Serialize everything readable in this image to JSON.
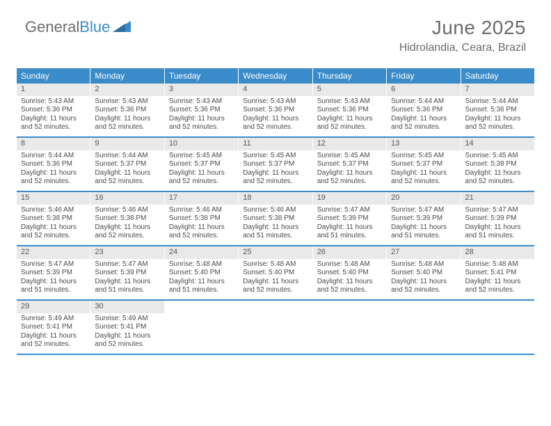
{
  "logo": {
    "general": "General",
    "blue": "Blue"
  },
  "title": "June 2025",
  "subtitle": "Hidrolandia, Ceara, Brazil",
  "colors": {
    "header_bar": "#3a8bc9",
    "daynum_bg": "#e9e9e9",
    "text": "#4a4a4a",
    "title_color": "#6b6b6b"
  },
  "day_headers": [
    "Sunday",
    "Monday",
    "Tuesday",
    "Wednesday",
    "Thursday",
    "Friday",
    "Saturday"
  ],
  "weeks": [
    [
      {
        "n": "1",
        "sr": "5:43 AM",
        "ss": "5:36 PM",
        "dl": "11 hours and 52 minutes."
      },
      {
        "n": "2",
        "sr": "5:43 AM",
        "ss": "5:36 PM",
        "dl": "11 hours and 52 minutes."
      },
      {
        "n": "3",
        "sr": "5:43 AM",
        "ss": "5:36 PM",
        "dl": "11 hours and 52 minutes."
      },
      {
        "n": "4",
        "sr": "5:43 AM",
        "ss": "5:36 PM",
        "dl": "11 hours and 52 minutes."
      },
      {
        "n": "5",
        "sr": "5:43 AM",
        "ss": "5:36 PM",
        "dl": "11 hours and 52 minutes."
      },
      {
        "n": "6",
        "sr": "5:44 AM",
        "ss": "5:36 PM",
        "dl": "11 hours and 52 minutes."
      },
      {
        "n": "7",
        "sr": "5:44 AM",
        "ss": "5:36 PM",
        "dl": "11 hours and 52 minutes."
      }
    ],
    [
      {
        "n": "8",
        "sr": "5:44 AM",
        "ss": "5:36 PM",
        "dl": "11 hours and 52 minutes."
      },
      {
        "n": "9",
        "sr": "5:44 AM",
        "ss": "5:37 PM",
        "dl": "11 hours and 52 minutes."
      },
      {
        "n": "10",
        "sr": "5:45 AM",
        "ss": "5:37 PM",
        "dl": "11 hours and 52 minutes."
      },
      {
        "n": "11",
        "sr": "5:45 AM",
        "ss": "5:37 PM",
        "dl": "11 hours and 52 minutes."
      },
      {
        "n": "12",
        "sr": "5:45 AM",
        "ss": "5:37 PM",
        "dl": "11 hours and 52 minutes."
      },
      {
        "n": "13",
        "sr": "5:45 AM",
        "ss": "5:37 PM",
        "dl": "11 hours and 52 minutes."
      },
      {
        "n": "14",
        "sr": "5:45 AM",
        "ss": "5:38 PM",
        "dl": "11 hours and 52 minutes."
      }
    ],
    [
      {
        "n": "15",
        "sr": "5:46 AM",
        "ss": "5:38 PM",
        "dl": "11 hours and 52 minutes."
      },
      {
        "n": "16",
        "sr": "5:46 AM",
        "ss": "5:38 PM",
        "dl": "11 hours and 52 minutes."
      },
      {
        "n": "17",
        "sr": "5:46 AM",
        "ss": "5:38 PM",
        "dl": "11 hours and 52 minutes."
      },
      {
        "n": "18",
        "sr": "5:46 AM",
        "ss": "5:38 PM",
        "dl": "11 hours and 51 minutes."
      },
      {
        "n": "19",
        "sr": "5:47 AM",
        "ss": "5:39 PM",
        "dl": "11 hours and 51 minutes."
      },
      {
        "n": "20",
        "sr": "5:47 AM",
        "ss": "5:39 PM",
        "dl": "11 hours and 51 minutes."
      },
      {
        "n": "21",
        "sr": "5:47 AM",
        "ss": "5:39 PM",
        "dl": "11 hours and 51 minutes."
      }
    ],
    [
      {
        "n": "22",
        "sr": "5:47 AM",
        "ss": "5:39 PM",
        "dl": "11 hours and 51 minutes."
      },
      {
        "n": "23",
        "sr": "5:47 AM",
        "ss": "5:39 PM",
        "dl": "11 hours and 51 minutes."
      },
      {
        "n": "24",
        "sr": "5:48 AM",
        "ss": "5:40 PM",
        "dl": "11 hours and 51 minutes."
      },
      {
        "n": "25",
        "sr": "5:48 AM",
        "ss": "5:40 PM",
        "dl": "11 hours and 52 minutes."
      },
      {
        "n": "26",
        "sr": "5:48 AM",
        "ss": "5:40 PM",
        "dl": "11 hours and 52 minutes."
      },
      {
        "n": "27",
        "sr": "5:48 AM",
        "ss": "5:40 PM",
        "dl": "11 hours and 52 minutes."
      },
      {
        "n": "28",
        "sr": "5:48 AM",
        "ss": "5:41 PM",
        "dl": "11 hours and 52 minutes."
      }
    ],
    [
      {
        "n": "29",
        "sr": "5:49 AM",
        "ss": "5:41 PM",
        "dl": "11 hours and 52 minutes."
      },
      {
        "n": "30",
        "sr": "5:49 AM",
        "ss": "5:41 PM",
        "dl": "11 hours and 52 minutes."
      },
      null,
      null,
      null,
      null,
      null
    ]
  ],
  "labels": {
    "sunrise": "Sunrise:",
    "sunset": "Sunset:",
    "daylight": "Daylight:"
  }
}
